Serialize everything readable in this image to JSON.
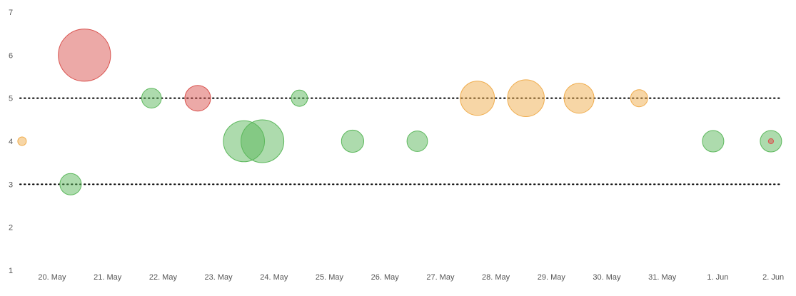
{
  "chart_data": {
    "type": "bubble",
    "title": "",
    "xlabel": "",
    "ylabel": "",
    "x_tick_labels": [
      "20. May",
      "21. May",
      "22. May",
      "23. May",
      "24. May",
      "25. May",
      "26. May",
      "27. May",
      "28. May",
      "29. May",
      "30. May",
      "31. May",
      "1. Jun",
      "2. Jun"
    ],
    "y_tick_labels": [
      "1",
      "2",
      "3",
      "4",
      "5",
      "6",
      "7"
    ],
    "ylim": [
      1,
      7
    ],
    "grid": false,
    "reference_lines": [
      {
        "y": 3,
        "style": "dotted",
        "color": "#000000"
      },
      {
        "y": 5,
        "style": "dotted",
        "color": "#000000"
      }
    ],
    "colors": {
      "green": "#5cb85c",
      "red": "#d9534f",
      "orange": "#f0ad4e"
    },
    "points": [
      {
        "x": "2019-05-19T11:00",
        "y": 4,
        "size": 1.0,
        "color": "orange"
      },
      {
        "x": "2019-05-20T08:00",
        "y": 3,
        "size": 2.5,
        "color": "green"
      },
      {
        "x": "2019-05-20T14:00",
        "y": 6,
        "size": 6.1,
        "color": "red"
      },
      {
        "x": "2019-05-21T19:00",
        "y": 5,
        "size": 2.3,
        "color": "green"
      },
      {
        "x": "2019-05-22T15:00",
        "y": 5,
        "size": 3.0,
        "color": "red"
      },
      {
        "x": "2019-05-23T11:00",
        "y": 4,
        "size": 4.8,
        "color": "green"
      },
      {
        "x": "2019-05-23T19:00",
        "y": 4,
        "size": 5.0,
        "color": "green"
      },
      {
        "x": "2019-05-24T11:00",
        "y": 5,
        "size": 1.9,
        "color": "green"
      },
      {
        "x": "2019-05-25T10:00",
        "y": 4,
        "size": 2.6,
        "color": "green"
      },
      {
        "x": "2019-05-26T14:00",
        "y": 4,
        "size": 2.4,
        "color": "green"
      },
      {
        "x": "2019-05-27T16:00",
        "y": 5,
        "size": 4.0,
        "color": "orange"
      },
      {
        "x": "2019-05-28T13:00",
        "y": 5,
        "size": 4.3,
        "color": "orange"
      },
      {
        "x": "2019-05-29T12:00",
        "y": 5,
        "size": 3.5,
        "color": "orange"
      },
      {
        "x": "2019-05-30T14:00",
        "y": 5,
        "size": 2.0,
        "color": "orange"
      },
      {
        "x": "2019-05-31T22:00",
        "y": 4,
        "size": 2.5,
        "color": "green"
      },
      {
        "x": "2019-06-01T23:00",
        "y": 4,
        "size": 2.5,
        "color": "green"
      },
      {
        "x": "2019-06-01T23:00",
        "y": 4,
        "size": 0.6,
        "color": "red"
      }
    ]
  }
}
